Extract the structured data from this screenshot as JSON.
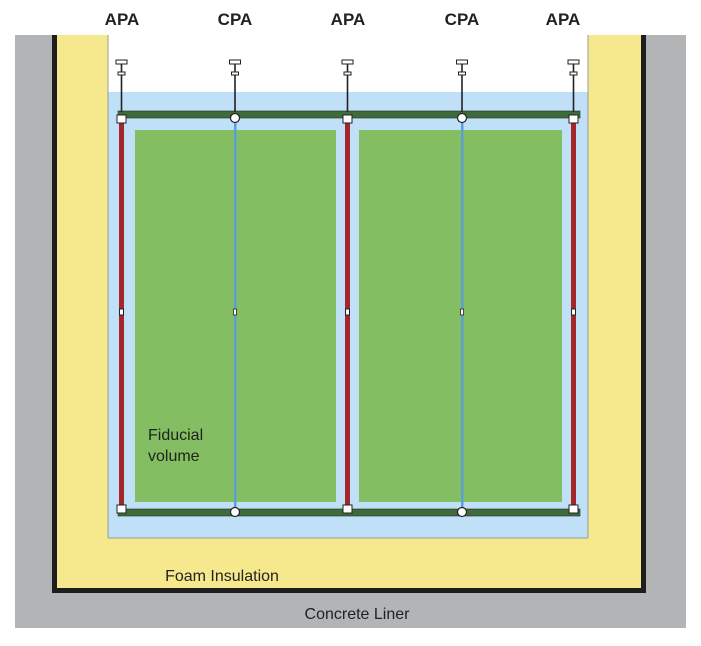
{
  "top_labels": [
    "APA",
    "CPA",
    "APA",
    "CPA",
    "APA"
  ],
  "fiducial": {
    "line1": "Fiducial",
    "line2": "volume"
  },
  "foam_label": "Foam Insulation",
  "concrete_label": "Concrete Liner",
  "colors": {
    "concrete": "#b3b4b6",
    "membrane": "#1e1e1e",
    "foam": "#f6e98d",
    "argon": "#bfe0f6",
    "fiducial": "#83bf62",
    "apa": "#a3262a",
    "cpa": "#5a9fd6",
    "field_cage": "#3f6b3a"
  }
}
